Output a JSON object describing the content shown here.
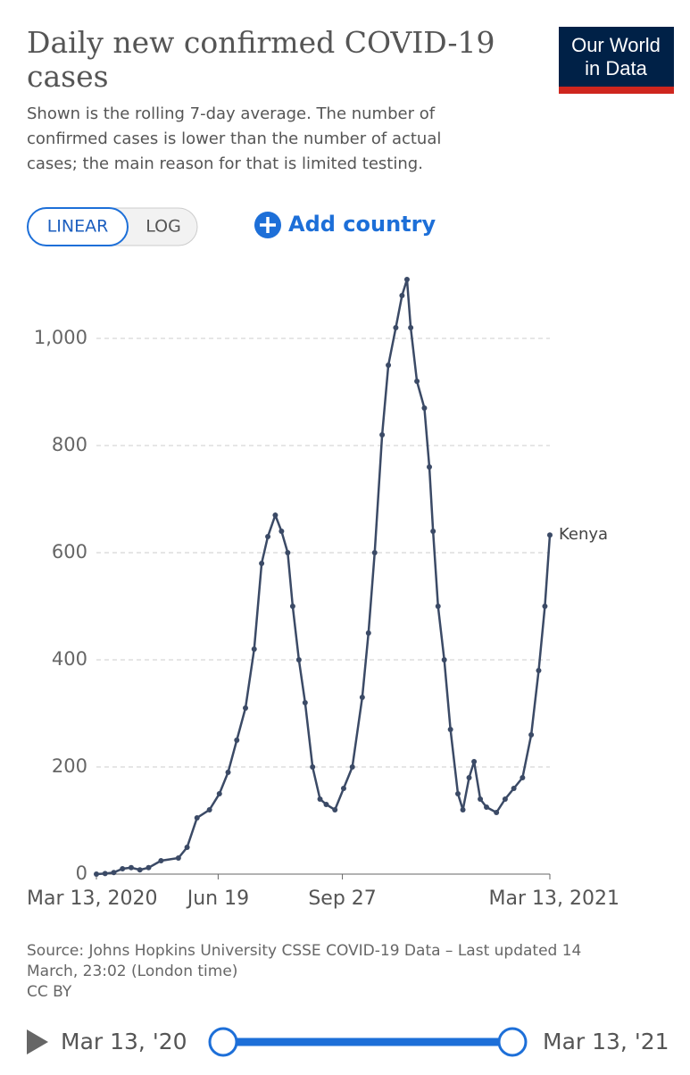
{
  "header": {
    "title_lines": [
      "Daily new confirmed COVID-19",
      "cases"
    ],
    "subtitle_lines": [
      "Shown is the rolling 7-day average. The number of",
      "confirmed cases is lower than the number of actual",
      "cases; the main reason for that is limited testing."
    ],
    "logo_lines": [
      "Our World",
      "in Data"
    ]
  },
  "controls": {
    "linear": "LINEAR",
    "log": "LOG",
    "add_country": "Add country"
  },
  "chart_data": {
    "type": "line",
    "x": [
      "2020-03-13",
      "2020-03-20",
      "2020-03-27",
      "2020-04-03",
      "2020-04-10",
      "2020-04-17",
      "2020-04-24",
      "2020-05-04",
      "2020-05-18",
      "2020-05-25",
      "2020-06-02",
      "2020-06-12",
      "2020-06-20",
      "2020-06-27",
      "2020-07-04",
      "2020-07-11",
      "2020-07-18",
      "2020-07-24",
      "2020-07-29",
      "2020-08-04",
      "2020-08-09",
      "2020-08-14",
      "2020-08-18",
      "2020-08-23",
      "2020-08-28",
      "2020-09-03",
      "2020-09-09",
      "2020-09-14",
      "2020-09-21",
      "2020-09-28",
      "2020-10-05",
      "2020-10-13",
      "2020-10-18",
      "2020-10-23",
      "2020-10-29",
      "2020-11-03",
      "2020-11-09",
      "2020-11-14",
      "2020-11-18",
      "2020-11-21",
      "2020-11-26",
      "2020-12-02",
      "2020-12-06",
      "2020-12-09",
      "2020-12-13",
      "2020-12-18",
      "2020-12-23",
      "2020-12-29",
      "2021-01-02",
      "2021-01-07",
      "2021-01-11",
      "2021-01-16",
      "2021-01-21",
      "2021-01-29",
      "2021-02-05",
      "2021-02-12",
      "2021-02-19",
      "2021-02-26",
      "2021-03-04",
      "2021-03-09",
      "2021-03-13"
    ],
    "series": [
      {
        "name": "Kenya",
        "color": "#3b4a66",
        "values": [
          0,
          1,
          3,
          10,
          12,
          8,
          12,
          25,
          30,
          50,
          105,
          120,
          150,
          190,
          250,
          310,
          420,
          580,
          630,
          670,
          640,
          600,
          500,
          400,
          320,
          200,
          140,
          130,
          120,
          160,
          200,
          330,
          450,
          600,
          820,
          950,
          1020,
          1080,
          1110,
          1020,
          920,
          870,
          760,
          640,
          500,
          400,
          270,
          150,
          120,
          180,
          210,
          140,
          125,
          115,
          140,
          160,
          180,
          260,
          380,
          500,
          633
        ]
      }
    ],
    "xlim": [
      "2020-03-13",
      "2021-03-13"
    ],
    "xticks": [
      {
        "value": "2020-03-13",
        "label": "Mar 13, 2020"
      },
      {
        "value": "2020-06-19",
        "label": "Jun 19"
      },
      {
        "value": "2020-09-27",
        "label": "Sep 27"
      },
      {
        "value": "2021-03-13",
        "label": "Mar 13, 2021"
      }
    ],
    "ylim": [
      0,
      1110
    ],
    "yticks": [
      0,
      200,
      400,
      600,
      800,
      {
        "value": 1000,
        "label": "1,000"
      }
    ],
    "grid": true
  },
  "footer": {
    "source_lines": [
      "Source: Johns Hopkins University CSSE COVID-19 Data – Last updated 14",
      "March, 23:02 (London time)"
    ],
    "license": "CC BY"
  },
  "timeline": {
    "start": "Mar 13, '20",
    "end": "Mar 13, '21"
  }
}
